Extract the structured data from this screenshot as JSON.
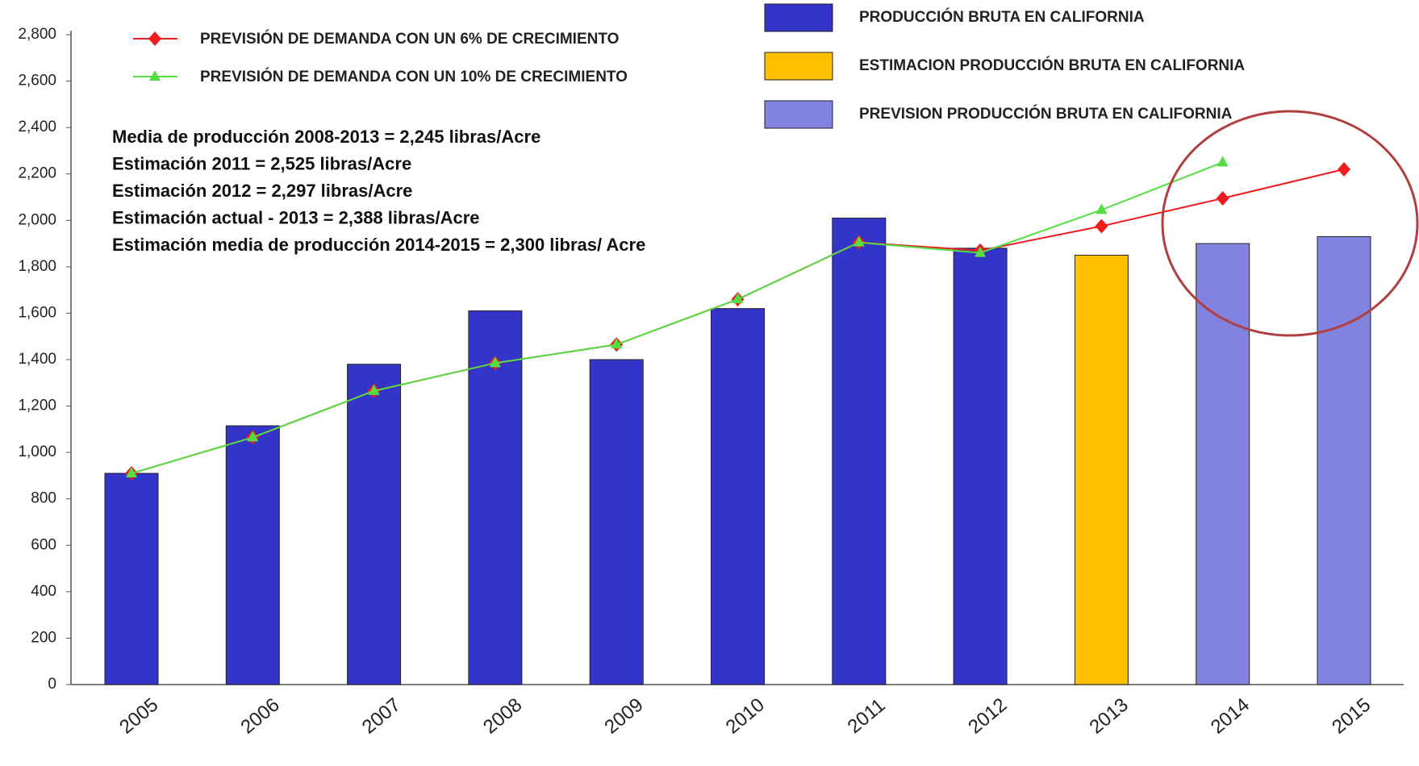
{
  "chart_data": {
    "type": "bar",
    "categories": [
      "2005",
      "2006",
      "2007",
      "2008",
      "2009",
      "2010",
      "2011",
      "2012",
      "2013",
      "2014",
      "2015"
    ],
    "series": [
      {
        "name": "PRODUCCIÓN BRUTA EN CALIFORNIA",
        "type": "bar",
        "color": "#3434c8",
        "values": [
          910,
          1115,
          1380,
          1610,
          1400,
          1620,
          2010,
          1880,
          null,
          null,
          null
        ]
      },
      {
        "name": "ESTIMACION PRODUCCIÓN BRUTA EN CALIFORNIA",
        "type": "bar",
        "color": "#ffc000",
        "values": [
          null,
          null,
          null,
          null,
          null,
          null,
          null,
          null,
          1850,
          null,
          null
        ]
      },
      {
        "name": "PREVISION PRODUCCIÓN BRUTA EN CALIFORNIA",
        "type": "bar",
        "color": "#8282e0",
        "values": [
          null,
          null,
          null,
          null,
          null,
          null,
          null,
          null,
          null,
          1900,
          1930
        ]
      },
      {
        "name": "PREVISIÓN DE DEMANDA CON UN 6% DE CRECIMIENTO",
        "type": "line",
        "marker": "diamond",
        "color": "#ee1c1c",
        "values": [
          910,
          1065,
          1265,
          1385,
          1465,
          1660,
          1905,
          1870,
          1975,
          2095,
          2220
        ]
      },
      {
        "name": "PREVISIÓN DE DEMANDA CON UN 10% DE CRECIMIENTO",
        "type": "line",
        "marker": "triangle",
        "color": "#55dd44",
        "values": [
          910,
          1065,
          1265,
          1385,
          1465,
          1660,
          1905,
          1860,
          2045,
          2250,
          null
        ]
      }
    ],
    "annotations": [
      "Media de producción 2008-2013 =  2,245 libras/Acre",
      "Estimación 2011 = 2,525 libras/Acre",
      "Estimación 2012 = 2,297 libras/Acre",
      "Estimación actual - 2013 = 2,388 libras/Acre",
      "Estimación media de producción 2014-2015 =  2,300 libras/ Acre"
    ],
    "ylim": [
      0,
      2800
    ],
    "yticks": [
      0,
      200,
      400,
      600,
      800,
      {
        "value": 1000,
        "label": "1,000"
      },
      {
        "value": 1200,
        "label": "1,200"
      },
      {
        "value": 1400,
        "label": "1,400"
      },
      {
        "value": 1600,
        "label": "1,600"
      },
      {
        "value": 1800,
        "label": "1,800"
      },
      {
        "value": 2000,
        "label": "2,000"
      },
      {
        "value": 2200,
        "label": "2,200"
      },
      {
        "value": 2400,
        "label": "2,400"
      },
      {
        "value": 2600,
        "label": "2,600"
      },
      {
        "value": 2800,
        "label": "2,800"
      }
    ],
    "grid": false
  }
}
